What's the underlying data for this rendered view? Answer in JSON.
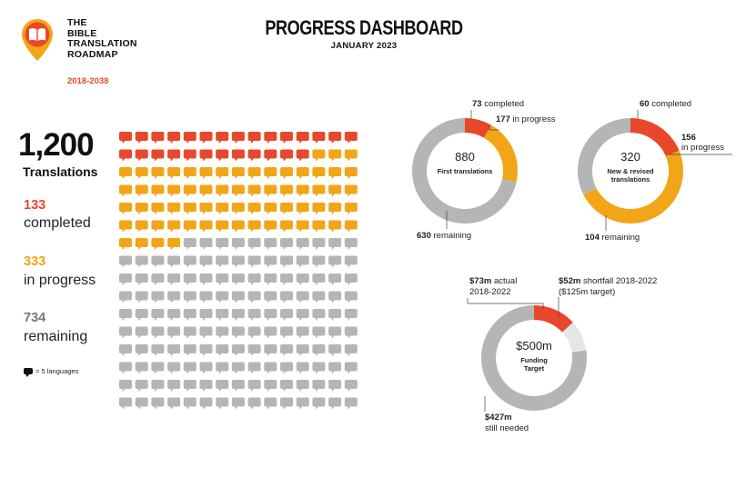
{
  "header": {
    "title": "PROGRESS DASHBOARD",
    "subtitle": "JANUARY 2023"
  },
  "logo": {
    "lines": [
      "THE",
      "BIBLE",
      "TRANSLATION",
      "ROADMAP"
    ],
    "years": "2018-2038",
    "icon": "book-pin-icon"
  },
  "summary": {
    "total": "1,200",
    "total_label": "Translations",
    "completed_value": "133",
    "completed_label": "completed",
    "in_progress_value": "333",
    "in_progress_label": "in progress",
    "remaining_value": "734",
    "remaining_label": "remaining",
    "legend": "= 5 languages"
  },
  "colors": {
    "completed": "#e8482a",
    "in_progress": "#f2a516",
    "remaining": "#b5b5b5",
    "funding_shortfall": "#e6e6e6"
  },
  "chart_data": [
    {
      "type": "waffle",
      "title": "1,200 Translations",
      "unit": "= 5 languages",
      "columns": 15,
      "rows": 16,
      "series": [
        {
          "name": "completed",
          "value": 133
        },
        {
          "name": "in progress",
          "value": 333
        },
        {
          "name": "remaining",
          "value": 734
        }
      ]
    },
    {
      "type": "pie",
      "center_value": "880",
      "center_label": "First translations",
      "slices": [
        {
          "name": "completed",
          "value": 73,
          "label_value": "73",
          "label_text": "completed",
          "color": "#e8482a"
        },
        {
          "name": "in progress",
          "value": 177,
          "label_value": "177",
          "label_text": "in progress",
          "color": "#f2a516"
        },
        {
          "name": "remaining",
          "value": 630,
          "label_value": "630",
          "label_text": "remaining",
          "color": "#b5b5b5"
        }
      ]
    },
    {
      "type": "pie",
      "center_value": "320",
      "center_label": "New & revised translations",
      "slices": [
        {
          "name": "completed",
          "value": 60,
          "label_value": "60",
          "label_text": "completed",
          "color": "#e8482a"
        },
        {
          "name": "in progress",
          "value": 156,
          "label_value": "156",
          "label_text": "in progress",
          "color": "#f2a516"
        },
        {
          "name": "remaining",
          "value": 104,
          "label_value": "104",
          "label_text": "remaining",
          "color": "#b5b5b5"
        }
      ]
    },
    {
      "type": "pie",
      "center_value": "$500m",
      "center_label": "Funding Target",
      "slices": [
        {
          "name": "actual 2018-2022",
          "value": 73,
          "label_value": "$73m",
          "label_text": "actual 2018-2022",
          "color": "#e8482a"
        },
        {
          "name": "shortfall 2018-2022",
          "value": 52,
          "label_value": "$52m",
          "label_text": "shortfall 2018-2022 ($125m target)",
          "color": "#e6e6e6"
        },
        {
          "name": "still needed",
          "value": 427,
          "label_value": "$427m",
          "label_text": "still needed",
          "color": "#b5b5b5"
        }
      ]
    }
  ]
}
